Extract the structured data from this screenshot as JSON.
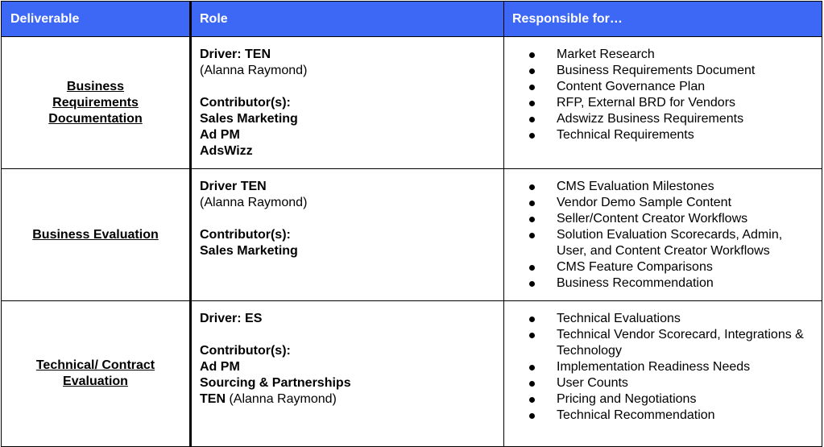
{
  "header": {
    "deliverable": "Deliverable",
    "role": "Role",
    "responsible": "Responsible for…"
  },
  "colors": {
    "header_bg": "#3d67f5",
    "header_text": "#ffffff"
  },
  "rows": [
    {
      "deliverable": "Business Requirements Documentation",
      "driver": "Driver: TEN",
      "driver_detail": "(Alanna Raymond)",
      "contributors_label": "Contributor(s):",
      "contributors": [
        "Sales Marketing",
        "Ad PM",
        "AdsWizz"
      ],
      "responsible": [
        "Market Research",
        "Business Requirements Document",
        "Content Governance Plan",
        "RFP, External BRD for Vendors",
        "Adswizz Business Requirements",
        "Technical Requirements"
      ]
    },
    {
      "deliverable": "Business Evaluation",
      "driver": "Driver TEN",
      "driver_detail": "(Alanna Raymond)",
      "contributors_label": "Contributor(s):",
      "contributors": [
        "Sales Marketing"
      ],
      "responsible": [
        "CMS Evaluation Milestones",
        "Vendor Demo Sample Content",
        "Seller/Content Creator Workflows",
        "Solution Evaluation Scorecards, Admin, User, and Content Creator Workflows",
        "CMS Feature Comparisons",
        "Business Recommendation"
      ]
    },
    {
      "deliverable": "Technical/ Contract Evaluation",
      "driver": "Driver: ES",
      "contributors_label": "Contributor(s):",
      "contributors": [
        "Ad PM",
        "Sourcing & Partnerships"
      ],
      "last_contributor_bold": "TEN",
      "last_contributor_rest": " (Alanna Raymond)",
      "responsible": [
        "Technical Evaluations",
        "Technical Vendor Scorecard, Integrations & Technology",
        "Implementation Readiness Needs",
        "User Counts",
        "Pricing and Negotiations",
        "Technical Recommendation"
      ]
    }
  ]
}
